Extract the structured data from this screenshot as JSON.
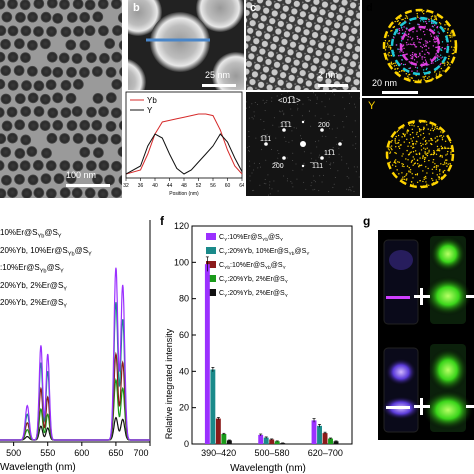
{
  "figure": {
    "panel_labels": [
      "b",
      "c",
      "d",
      "f",
      "g"
    ],
    "panel_a": {
      "scale_label": "100 nm"
    },
    "panel_b": {
      "scale_label": "25 nm",
      "legend": [
        "Yb",
        "Y"
      ],
      "xticks": [
        "32",
        "36",
        "40",
        "44",
        "48",
        "52",
        "56",
        "60",
        "64"
      ],
      "xlabel": "Position (nm)",
      "colors": {
        "Yb": "#d62b2b",
        "Y": "#111111",
        "line": "#4a86c8"
      }
    },
    "panel_c": {
      "scale_label": "2 nm",
      "fft_zone": "<01̅1>",
      "fft_labels": [
        "1̅1̅1",
        "200",
        "1̅11",
        "11̅1",
        "2̅00",
        "̅1̅11"
      ]
    },
    "panel_d": {
      "scale_label": "20 nm",
      "element_label": "Y",
      "colors": {
        "shell": "#ffd400",
        "middle": "#20c8d8",
        "core": "#e040e0"
      }
    },
    "panel_e": {
      "legend": [
        "10%Er@S_Yb@S_Y",
        "20%Yb, 10%Er@S_Yb@S_Y",
        ":10%Er@S_Yb@S_Y",
        "20%Yb, 2%Er@S_Y",
        "20%Yb, 2%Er@S_Y"
      ],
      "xticks": [
        "500",
        "550",
        "600",
        "650",
        "700"
      ],
      "xlabel": "Wavelength (nm)",
      "colors": [
        "#9b30ff",
        "#1a8a8a",
        "#8b1a1a",
        "#1a9a1a",
        "#111111"
      ]
    },
    "panel_f": {
      "legend": [
        "C_Y:10%Er@S_Yb@S_Y",
        "C_Y:20%Yb, 10%Er@S_Yb@S_Y",
        "C_Yb:10%Er@S_Yb@S_Y",
        "C_Y:20%Yb, 2%Er@S_Y",
        "C_Y:20%Yb, 2%Er@S_Y"
      ],
      "ylabel": "Relative integrated intensity",
      "xlabel": "Wavelength (nm)",
      "colors": [
        "#9b30ff",
        "#1a8a8a",
        "#8b1a1a",
        "#1a9a1a",
        "#111111"
      ]
    }
  },
  "chart_data": [
    {
      "type": "bar",
      "panel": "f",
      "categories": [
        "390–420",
        "500–580",
        "620–700"
      ],
      "series": [
        {
          "name": "C_Y:10%Er@S_Yb@S_Y",
          "values": [
            99,
            5,
            13
          ]
        },
        {
          "name": "C_Y:20%Yb, 10%Er@S_Yb@S_Y",
          "values": [
            41,
            3.5,
            10
          ]
        },
        {
          "name": "C_Yb:10%Er@S_Yb@S_Y",
          "values": [
            14,
            2.5,
            6
          ]
        },
        {
          "name": "C_Y:20%Yb, 2%Er@S_Y",
          "values": [
            5.5,
            1.5,
            3
          ]
        },
        {
          "name": "C_Y:20%Yb, 2%Er@S_Y",
          "values": [
            2,
            0.5,
            1.5
          ]
        }
      ],
      "errors": [
        [
          4,
          0.5,
          1
        ],
        [
          1.2,
          0.4,
          0.8
        ],
        [
          0.6,
          0.3,
          0.5
        ],
        [
          0.4,
          0.2,
          0.3
        ],
        [
          0.2,
          0.1,
          0.2
        ]
      ],
      "ylim": [
        0,
        120
      ],
      "yticks": [
        0,
        20,
        40,
        60,
        80,
        100,
        120
      ],
      "xlabel": "Wavelength (nm)",
      "ylabel": "Relative integrated intensity"
    },
    {
      "type": "line",
      "panel": "e",
      "xlim": [
        480,
        700
      ],
      "xticks": [
        500,
        550,
        600,
        650,
        700
      ],
      "xlabel": "Wavelength (nm)",
      "peaks": [
        520,
        540,
        550,
        650,
        660
      ],
      "series": [
        {
          "name": "10%Er@S_Yb@S_Y",
          "heights": [
            0.2,
            0.55,
            0.5,
            1.0,
            0.9
          ]
        },
        {
          "name": "20%Yb, 10%Er@S_Yb@S_Y",
          "heights": [
            0.15,
            0.45,
            0.4,
            0.8,
            0.7
          ]
        },
        {
          "name": ":10%Er@S_Yb@S_Y",
          "heights": [
            0.1,
            0.3,
            0.25,
            0.5,
            0.45
          ]
        },
        {
          "name": "20%Yb, 2%Er@S_Y",
          "heights": [
            0.06,
            0.18,
            0.15,
            0.35,
            0.3
          ]
        },
        {
          "name": "20%Yb, 2%Er@S_Y",
          "heights": [
            0.02,
            0.08,
            0.07,
            0.13,
            0.12
          ]
        }
      ]
    },
    {
      "type": "line",
      "panel": "b",
      "xlim": [
        32,
        64
      ],
      "xlabel": "Position (nm)",
      "series": [
        {
          "name": "Yb",
          "x": [
            32,
            36,
            38,
            40,
            42,
            44,
            46,
            48,
            50,
            52,
            54,
            56,
            58,
            60,
            62,
            64
          ],
          "y": [
            0.05,
            0.1,
            0.3,
            0.55,
            0.7,
            0.72,
            0.74,
            0.76,
            0.78,
            0.8,
            0.8,
            0.78,
            0.6,
            0.35,
            0.15,
            0.05
          ]
        },
        {
          "name": "Y",
          "x": [
            32,
            36,
            38,
            40,
            42,
            44,
            46,
            48,
            50,
            52,
            54,
            56,
            58,
            60,
            62,
            64
          ],
          "y": [
            0.05,
            0.15,
            0.4,
            0.55,
            0.5,
            0.3,
            0.12,
            0.05,
            0.1,
            0.2,
            0.3,
            0.4,
            0.55,
            0.45,
            0.25,
            0.08
          ]
        }
      ]
    }
  ]
}
